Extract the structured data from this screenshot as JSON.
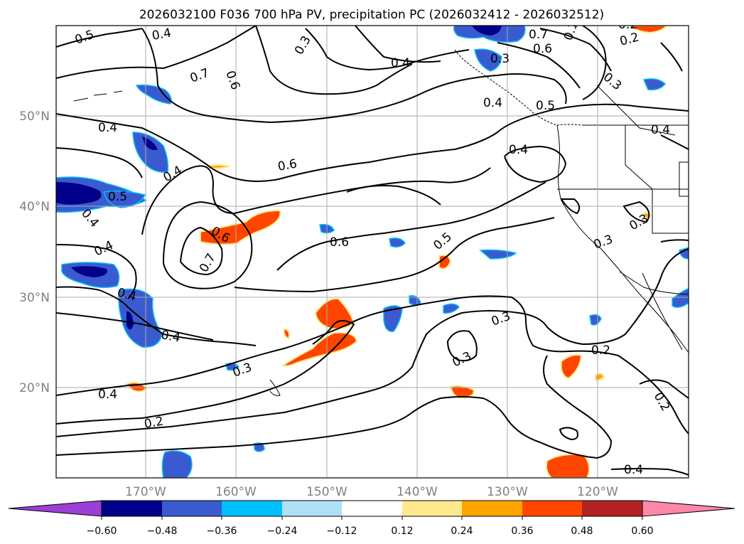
{
  "title": "2026032100 F036 700 hPa PV, precipitation PC (2026032412 - 2026032512)",
  "axes": {
    "lon_labels": [
      "170°W",
      "160°W",
      "150°W",
      "140°W",
      "130°W",
      "120°W"
    ],
    "lat_labels": [
      "50°N",
      "40°N",
      "30°N",
      "20°N"
    ],
    "lon_range": [
      -180,
      -110
    ],
    "lat_range": [
      10,
      60
    ]
  },
  "colorbar": {
    "ticks": [
      "−0.60",
      "−0.48",
      "−0.36",
      "−0.24",
      "−0.12",
      "0.12",
      "0.24",
      "0.36",
      "0.48",
      "0.60"
    ],
    "colors": [
      "#9b3fd6",
      "#00008b",
      "#3a5bd0",
      "#00bfff",
      "#aee0f8",
      "#ffffff",
      "#ffe88e",
      "#ffa500",
      "#ff4500",
      "#b22222",
      "#ff88aa"
    ],
    "extend": "both"
  },
  "contour_labels": [
    "0.5",
    "0.4",
    "0.3",
    "0.7",
    "0.6",
    "0.1",
    "0.4",
    "0.7",
    "0.6",
    "0.2",
    "0.3",
    "0.4",
    "0.4",
    "0.5",
    "0.4",
    "0.4",
    "0.6",
    "0.4",
    "0.5",
    "0.4",
    "0.3",
    "0.6",
    "0.7",
    "0.4",
    "0.6",
    "0.5",
    "0.3",
    "0.4",
    "0.4",
    "0.3",
    "0.3",
    "0.3",
    "0.4",
    "0.2",
    "0.2",
    "0.4",
    "0.2",
    "0.2",
    "0.3"
  ]
}
